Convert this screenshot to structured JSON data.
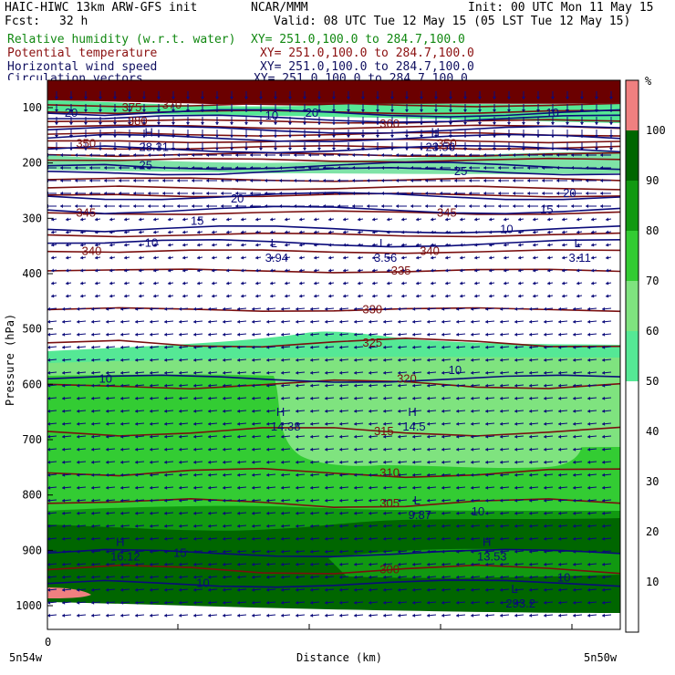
{
  "header": {
    "title": "HAIC-HIWC 13km ARW-GFS init",
    "org": "NCAR/MMM",
    "init": "Init: 00 UTC Mon 11 May 15",
    "fcst_label": "Fcst:",
    "fcst_value": "32 h",
    "valid": "Valid: 08 UTC Tue 12 May 15 (05 LST Tue 12 May 15)",
    "fields": [
      {
        "name": "Relative humidity (w.r.t. water)",
        "xy": "XY= 251.0,100.0 to 284.7,100.0",
        "color": "#118811"
      },
      {
        "name": "Potential temperature",
        "xy": "XY= 251.0,100.0 to 284.7,100.0",
        "color": "#8b1010"
      },
      {
        "name": "Horizontal wind speed",
        "xy": "XY= 251.0,100.0 to 284.7,100.0",
        "color": "#101060"
      },
      {
        "name": "Circulation vectors",
        "xy": "XY= 251.0,100.0 to 284.7,100.0",
        "color": "#101060"
      }
    ]
  },
  "chart_data": {
    "type": "cross-section",
    "xlabel": "Distance (km)",
    "ylabel": "Pressure (hPa)",
    "x_start_label": "5n54w",
    "x_end_label": "5n50w",
    "x_tick_zero": "0",
    "y_ticks": [
      100,
      200,
      300,
      400,
      500,
      600,
      700,
      800,
      900,
      1000
    ],
    "ylim": [
      1050,
      70
    ],
    "colorbar": {
      "unit": "%",
      "levels": [
        10,
        20,
        30,
        40,
        50,
        60,
        70,
        80,
        90,
        100
      ],
      "colors": [
        "#ffffff",
        "#ffffff",
        "#ffffff",
        "#ffffff",
        "#ffffff",
        "#55e895",
        "#7fe37f",
        "#33cc33",
        "#119911",
        "#006600",
        "#f08080"
      ]
    },
    "theta_labels": [
      {
        "text": "345",
        "p": 290,
        "x": 0.05
      },
      {
        "text": "345",
        "p": 290,
        "x": 0.68
      },
      {
        "text": "340",
        "p": 360,
        "x": 0.06
      },
      {
        "text": "340",
        "p": 360,
        "x": 0.65
      },
      {
        "text": "335",
        "p": 395,
        "x": 0.6
      },
      {
        "text": "330",
        "p": 465,
        "x": 0.55
      },
      {
        "text": "325",
        "p": 525,
        "x": 0.55
      },
      {
        "text": "320",
        "p": 590,
        "x": 0.61
      },
      {
        "text": "315",
        "p": 685,
        "x": 0.57
      },
      {
        "text": "310",
        "p": 760,
        "x": 0.58
      },
      {
        "text": "305",
        "p": 815,
        "x": 0.58
      },
      {
        "text": "300",
        "p": 935,
        "x": 0.58
      },
      {
        "text": "350",
        "p": 165,
        "x": 0.05
      },
      {
        "text": "350",
        "p": 165,
        "x": 0.68
      },
      {
        "text": "370",
        "p": 95,
        "x": 0.2
      },
      {
        "text": "375",
        "p": 100,
        "x": 0.13
      },
      {
        "text": "360",
        "p": 130,
        "x": 0.58
      },
      {
        "text": "380",
        "p": 125,
        "x": 0.14
      }
    ],
    "speed_labels": [
      {
        "text": "10",
        "p": 345,
        "x": 0.17
      },
      {
        "text": "15",
        "p": 305,
        "x": 0.25
      },
      {
        "text": "20",
        "p": 265,
        "x": 0.32
      },
      {
        "text": "25",
        "p": 205,
        "x": 0.16
      },
      {
        "text": "25",
        "p": 215,
        "x": 0.71
      },
      {
        "text": "20",
        "p": 255,
        "x": 0.9
      },
      {
        "text": "15",
        "p": 285,
        "x": 0.86
      },
      {
        "text": "10",
        "p": 320,
        "x": 0.79
      },
      {
        "text": "10",
        "p": 590,
        "x": 0.09
      },
      {
        "text": "10",
        "p": 575,
        "x": 0.7
      },
      {
        "text": "10",
        "p": 830,
        "x": 0.74
      },
      {
        "text": "15",
        "p": 905,
        "x": 0.22
      },
      {
        "text": "10",
        "p": 960,
        "x": 0.26
      },
      {
        "text": "10",
        "p": 950,
        "x": 0.89
      },
      {
        "text": "10",
        "p": 115,
        "x": 0.38
      },
      {
        "text": "10",
        "p": 110,
        "x": 0.87
      },
      {
        "text": "20",
        "p": 110,
        "x": 0.03
      },
      {
        "text": "20",
        "p": 110,
        "x": 0.45
      }
    ],
    "extrema": [
      {
        "mark": "L",
        "value": "3.94",
        "p": 365,
        "x": 0.38
      },
      {
        "mark": "L",
        "value": "3.56",
        "p": 365,
        "x": 0.57
      },
      {
        "mark": "L",
        "value": "3.11",
        "p": 365,
        "x": 0.91
      },
      {
        "mark": "H",
        "value": "14.38",
        "p": 670,
        "x": 0.39
      },
      {
        "mark": "H",
        "value": "14.5",
        "p": 670,
        "x": 0.62
      },
      {
        "mark": "L",
        "value": "9.87",
        "p": 830,
        "x": 0.63
      },
      {
        "mark": "H",
        "value": "16.12",
        "p": 905,
        "x": 0.11
      },
      {
        "mark": "H",
        "value": "13.53",
        "p": 905,
        "x": 0.75
      },
      {
        "mark": "L",
        "value": "293.2",
        "p": 990,
        "x": 0.8
      },
      {
        "mark": "H",
        "value": "28.31",
        "p": 165,
        "x": 0.16
      },
      {
        "mark": "H",
        "value": "23.56",
        "p": 165,
        "x": 0.66
      }
    ]
  }
}
